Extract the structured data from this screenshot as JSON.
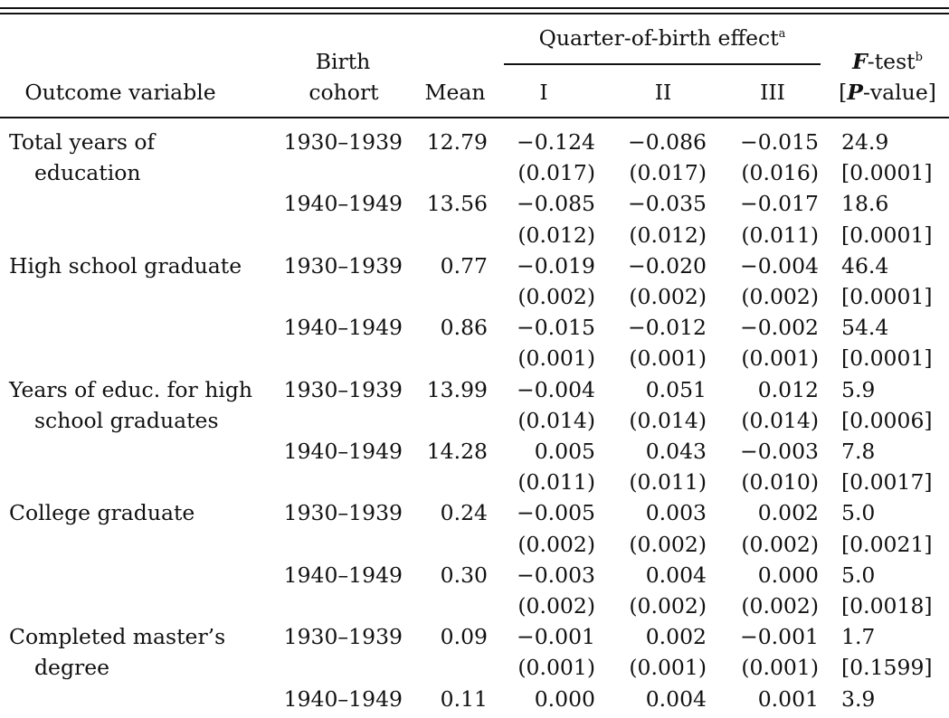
{
  "header": {
    "outcome_variable": "Outcome variable",
    "birth_cohort_line1": "Birth",
    "birth_cohort_line2": "cohort",
    "mean": "Mean",
    "quarter_effect": "Quarter-of-birth effect",
    "quarter_effect_sup": "a",
    "q1": "I",
    "q2": "II",
    "q3": "III",
    "ftest_F": "F",
    "ftest_rest": "-test",
    "ftest_sup": "b",
    "pvalue_open": "[",
    "pvalue_P": "P",
    "pvalue_rest": "-value]"
  },
  "rows": [
    {
      "outcome": "Total years of",
      "cohort": "1930–1939",
      "mean": "12.79",
      "q1": "−0.124",
      "q2": "−0.086",
      "q3": "−0.015",
      "f": "24.9"
    },
    {
      "outcome": "education",
      "cohort": "",
      "mean": "",
      "q1": "(0.017)",
      "q2": "(0.017)",
      "q3": "(0.016)",
      "f": "[0.0001]"
    },
    {
      "outcome": "",
      "cohort": "1940–1949",
      "mean": "13.56",
      "q1": "−0.085",
      "q2": "−0.035",
      "q3": "−0.017",
      "f": "18.6"
    },
    {
      "outcome": "",
      "cohort": "",
      "mean": "",
      "q1": "(0.012)",
      "q2": "(0.012)",
      "q3": "(0.011)",
      "f": "[0.0001]"
    },
    {
      "outcome": "High school graduate",
      "cohort": "1930–1939",
      "mean": "0.77",
      "q1": "−0.019",
      "q2": "−0.020",
      "q3": "−0.004",
      "f": "46.4"
    },
    {
      "outcome": "",
      "cohort": "",
      "mean": "",
      "q1": "(0.002)",
      "q2": "(0.002)",
      "q3": "(0.002)",
      "f": "[0.0001]"
    },
    {
      "outcome": "",
      "cohort": "1940–1949",
      "mean": "0.86",
      "q1": "−0.015",
      "q2": "−0.012",
      "q3": "−0.002",
      "f": "54.4"
    },
    {
      "outcome": "",
      "cohort": "",
      "mean": "",
      "q1": "(0.001)",
      "q2": "(0.001)",
      "q3": "(0.001)",
      "f": "[0.0001]"
    },
    {
      "outcome": "Years of educ. for high",
      "cohort": "1930–1939",
      "mean": "13.99",
      "q1": "−0.004",
      "q2": "0.051",
      "q3": "0.012",
      "f": "5.9"
    },
    {
      "outcome": "school graduates",
      "cohort": "",
      "mean": "",
      "q1": "(0.014)",
      "q2": "(0.014)",
      "q3": "(0.014)",
      "f": "[0.0006]"
    },
    {
      "outcome": "",
      "cohort": "1940–1949",
      "mean": "14.28",
      "q1": "0.005",
      "q2": "0.043",
      "q3": "−0.003",
      "f": "7.8"
    },
    {
      "outcome": "",
      "cohort": "",
      "mean": "",
      "q1": "(0.011)",
      "q2": "(0.011)",
      "q3": "(0.010)",
      "f": "[0.0017]"
    },
    {
      "outcome": "College graduate",
      "cohort": "1930–1939",
      "mean": "0.24",
      "q1": "−0.005",
      "q2": "0.003",
      "q3": "0.002",
      "f": "5.0"
    },
    {
      "outcome": "",
      "cohort": "",
      "mean": "",
      "q1": "(0.002)",
      "q2": "(0.002)",
      "q3": "(0.002)",
      "f": "[0.0021]"
    },
    {
      "outcome": "",
      "cohort": "1940–1949",
      "mean": "0.30",
      "q1": "−0.003",
      "q2": "0.004",
      "q3": "0.000",
      "f": "5.0"
    },
    {
      "outcome": "",
      "cohort": "",
      "mean": "",
      "q1": "(0.002)",
      "q2": "(0.002)",
      "q3": "(0.002)",
      "f": "[0.0018]"
    },
    {
      "outcome": "Completed master’s",
      "cohort": "1930–1939",
      "mean": "0.09",
      "q1": "−0.001",
      "q2": "0.002",
      "q3": "−0.001",
      "f": "1.7"
    },
    {
      "outcome": "degree",
      "cohort": "",
      "mean": "",
      "q1": "(0.001)",
      "q2": "(0.001)",
      "q3": "(0.001)",
      "f": "[0.1599]"
    },
    {
      "outcome": "",
      "cohort": "1940–1949",
      "mean": "0.11",
      "q1": "0.000",
      "q2": "0.004",
      "q3": "0.001",
      "f": "3.9"
    }
  ]
}
